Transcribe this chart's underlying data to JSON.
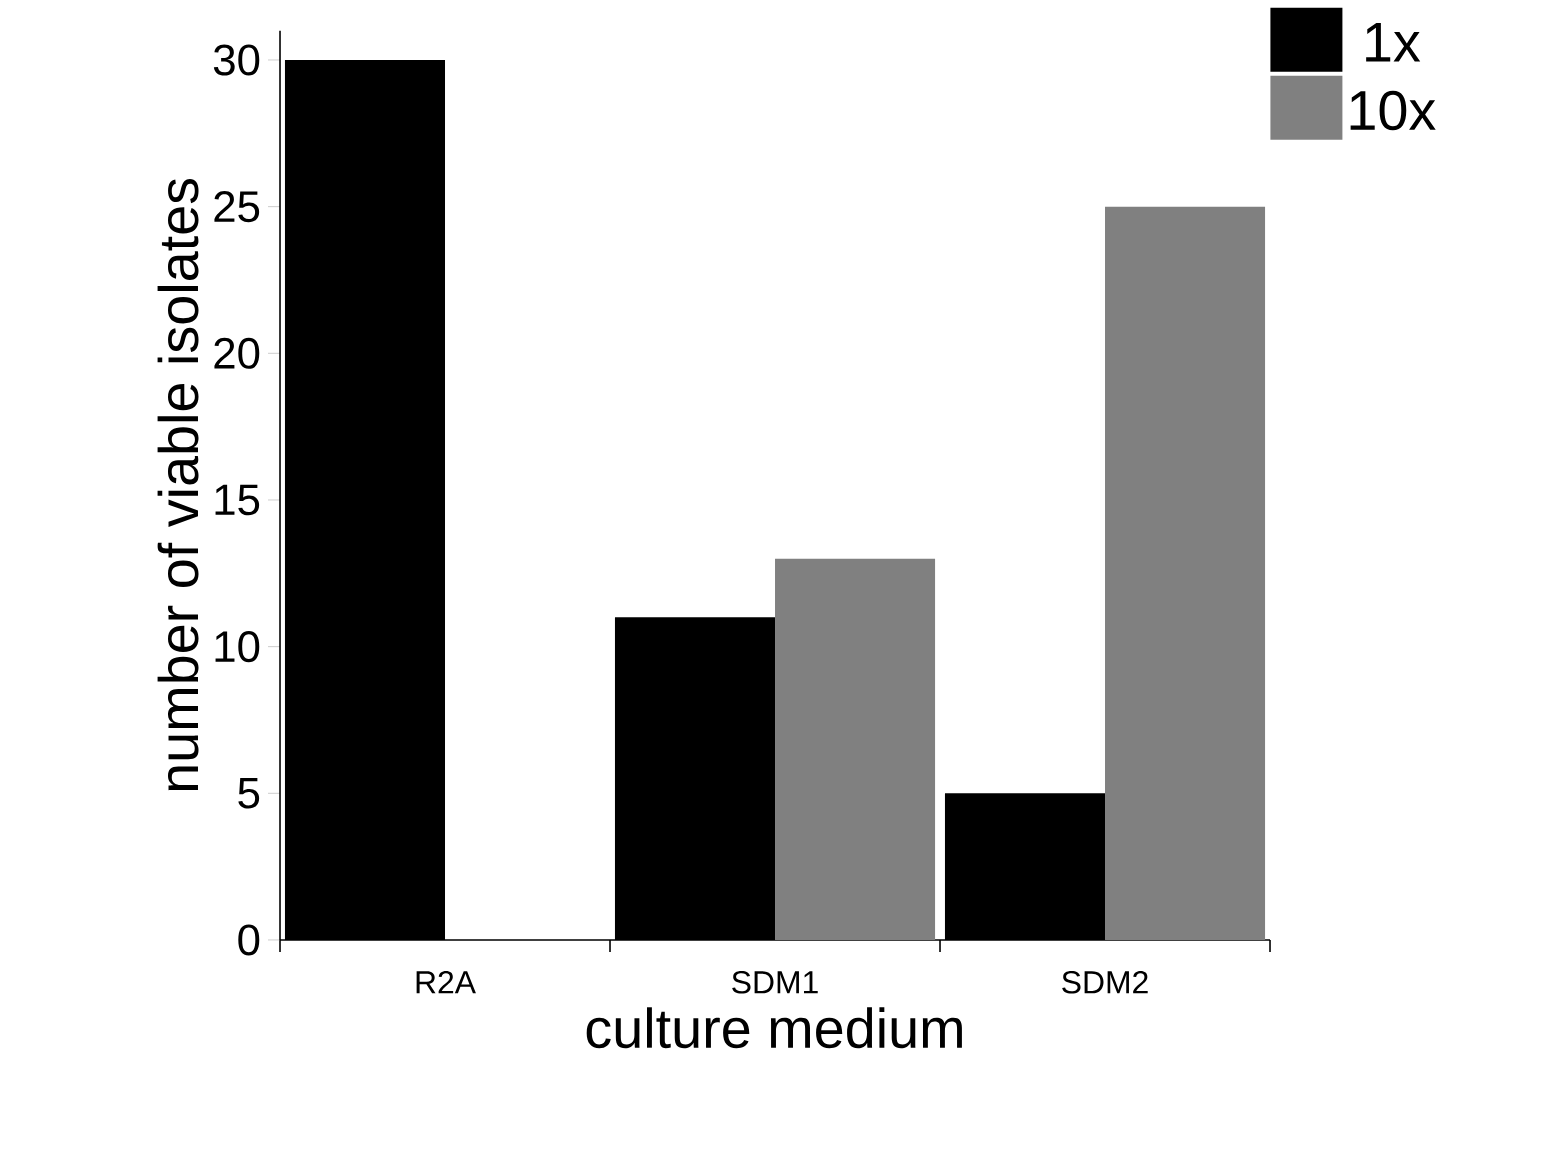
{
  "chart_data": {
    "type": "bar",
    "xlabel": "culture medium",
    "ylabel": "number of viable isolates",
    "categories": [
      "R2A",
      "SDM1",
      "SDM2"
    ],
    "series": [
      {
        "name": "1x",
        "color": "#000000",
        "values": [
          30,
          11,
          5
        ]
      },
      {
        "name": "10x",
        "color": "#808080",
        "values": [
          0,
          13,
          25
        ]
      }
    ],
    "ylim": [
      0,
      31
    ],
    "yticks": [
      0,
      5,
      10,
      15,
      20,
      25,
      30
    ],
    "grid": false,
    "legend": "top right"
  }
}
